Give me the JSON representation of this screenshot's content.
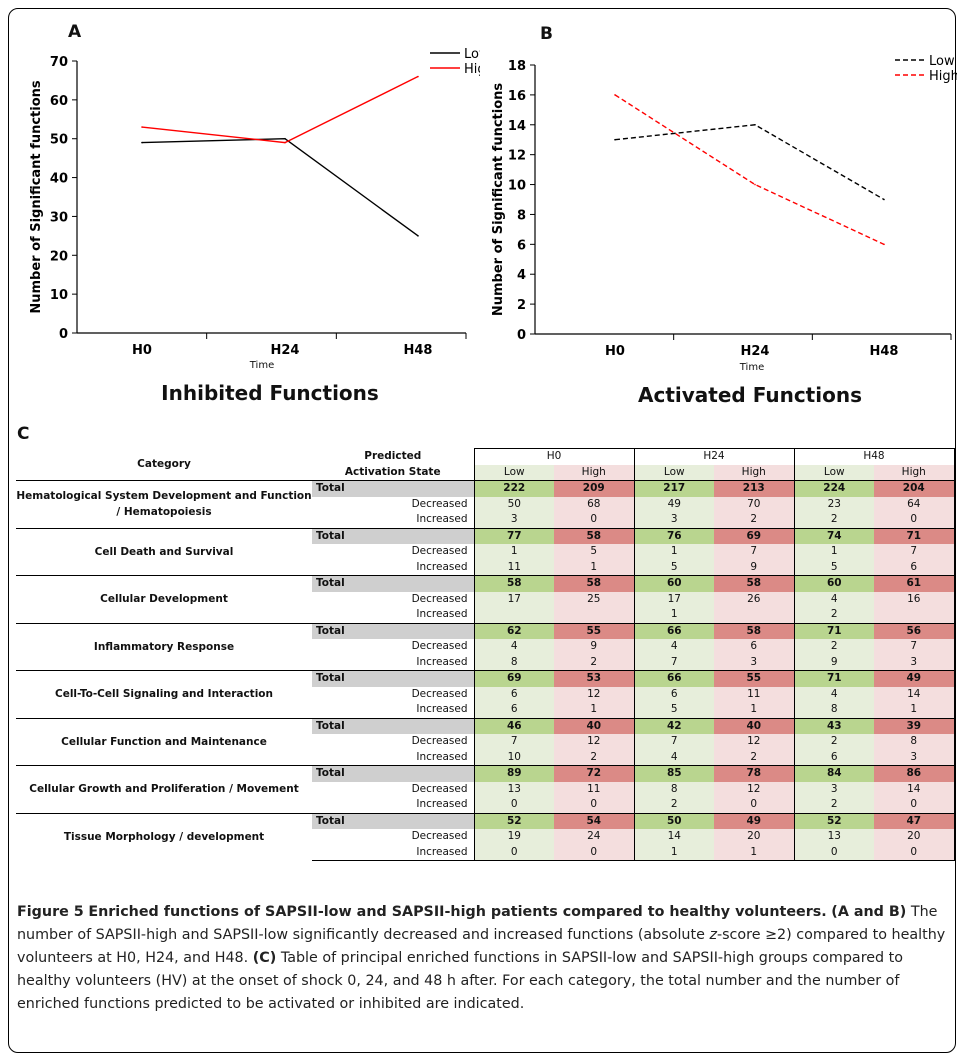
{
  "charts": {
    "A": {
      "letter": "A",
      "ylabel": "Number of Significant functions",
      "xlabel": "Time",
      "title": "Inhibited Functions",
      "yticks": [
        "0",
        "10",
        "20",
        "30",
        "40",
        "50",
        "60",
        "70"
      ],
      "xticks": [
        "H0",
        "H24",
        "H48"
      ],
      "legend": [
        {
          "name": "Low"
        },
        {
          "name": "High"
        }
      ]
    },
    "B": {
      "letter": "B",
      "ylabel": "Number of Significant functions",
      "xlabel": "Time",
      "title": "Activated Functions",
      "yticks": [
        "0",
        "2",
        "4",
        "6",
        "8",
        "10",
        "12",
        "14",
        "16",
        "18"
      ],
      "xticks": [
        "H0",
        "H24",
        "H48"
      ],
      "legend": [
        {
          "name": "Low"
        },
        {
          "name": "High"
        }
      ]
    }
  },
  "chart_data": [
    {
      "type": "line",
      "title": "Inhibited Functions",
      "xlabel": "Time",
      "ylabel": "Number of Significant functions",
      "categories": [
        "H0",
        "H24",
        "H48"
      ],
      "ylim": [
        0,
        70
      ],
      "series": [
        {
          "name": "Low",
          "values": [
            49,
            50,
            25
          ],
          "color": "#000000",
          "dash": "solid"
        },
        {
          "name": "High",
          "values": [
            53,
            49,
            66
          ],
          "color": "#ff0000",
          "dash": "solid"
        }
      ]
    },
    {
      "type": "line",
      "title": "Activated Functions",
      "xlabel": "Time",
      "ylabel": "Number of Significant functions",
      "categories": [
        "H0",
        "H24",
        "H48"
      ],
      "ylim": [
        0,
        18
      ],
      "series": [
        {
          "name": "Low",
          "values": [
            13,
            14,
            9
          ],
          "color": "#000000",
          "dash": "dashed"
        },
        {
          "name": "High",
          "values": [
            16,
            10,
            6
          ],
          "color": "#ff0000",
          "dash": "dashed"
        }
      ]
    }
  ],
  "panelC": {
    "letter": "C",
    "header": {
      "category": "Category",
      "predicted1": "Predicted",
      "predicted2": "Activation State",
      "times": [
        "H0",
        "H24",
        "H48"
      ],
      "low": "Low",
      "high": "High"
    },
    "total_label": "Total",
    "decreased_label": "Decreased",
    "increased_label": "Increased",
    "rows": [
      {
        "name": "Hematological System Development and Function / Hematopoiesis",
        "total": [
          "222",
          "209",
          "217",
          "213",
          "224",
          "204"
        ],
        "decreased": [
          "50",
          "68",
          "49",
          "70",
          "23",
          "64"
        ],
        "increased": [
          "3",
          "0",
          "3",
          "2",
          "2",
          "0"
        ]
      },
      {
        "name": "Cell Death and Survival",
        "total": [
          "77",
          "58",
          "76",
          "69",
          "74",
          "71"
        ],
        "decreased": [
          "1",
          "5",
          "1",
          "7",
          "1",
          "7"
        ],
        "increased": [
          "11",
          "1",
          "5",
          "9",
          "5",
          "6"
        ]
      },
      {
        "name": "Cellular Development",
        "total": [
          "58",
          "58",
          "60",
          "58",
          "60",
          "61"
        ],
        "decreased": [
          "17",
          "25",
          "17",
          "26",
          "4",
          "16"
        ],
        "increased": [
          "",
          "",
          "1",
          "",
          "2",
          ""
        ]
      },
      {
        "name": "Inflammatory Response",
        "total": [
          "62",
          "55",
          "66",
          "58",
          "71",
          "56"
        ],
        "decreased": [
          "4",
          "9",
          "4",
          "6",
          "2",
          "7"
        ],
        "increased": [
          "8",
          "2",
          "7",
          "3",
          "9",
          "3"
        ]
      },
      {
        "name": "Cell-To-Cell Signaling and Interaction",
        "total": [
          "69",
          "53",
          "66",
          "55",
          "71",
          "49"
        ],
        "decreased": [
          "6",
          "12",
          "6",
          "11",
          "4",
          "14"
        ],
        "increased": [
          "6",
          "1",
          "5",
          "1",
          "8",
          "1"
        ]
      },
      {
        "name": "Cellular Function and Maintenance",
        "total": [
          "46",
          "40",
          "42",
          "40",
          "43",
          "39"
        ],
        "decreased": [
          "7",
          "12",
          "7",
          "12",
          "2",
          "8"
        ],
        "increased": [
          "10",
          "2",
          "4",
          "2",
          "6",
          "3"
        ]
      },
      {
        "name": "Cellular Growth and Proliferation / Movement",
        "total": [
          "89",
          "72",
          "85",
          "78",
          "84",
          "86"
        ],
        "decreased": [
          "13",
          "11",
          "8",
          "12",
          "3",
          "14"
        ],
        "increased": [
          "0",
          "0",
          "2",
          "0",
          "2",
          "0"
        ]
      },
      {
        "name": "Tissue Morphology / development",
        "total": [
          "52",
          "54",
          "50",
          "49",
          "52",
          "47"
        ],
        "decreased": [
          "19",
          "24",
          "14",
          "20",
          "13",
          "20"
        ],
        "increased": [
          "0",
          "0",
          "1",
          "1",
          "0",
          "0"
        ]
      }
    ]
  },
  "caption": {
    "figure_label": "Figure 5",
    "title": "Enriched functions of SAPSII-low and SAPSII-high patients compared to healthy volunteers.",
    "ab_label": "(A and B)",
    "ab_text_1": "The number of SAPSII-high and SAPSII-low significantly decreased and increased functions (absolute",
    "z_letter": "z",
    "ab_text_2": "-score ≥2) compared to healthy volunteers at H0, H24, and H48.",
    "c_label": "(C)",
    "c_text": "Table of principal enriched functions in SAPSII-low and SAPSII-high groups compared to healthy volunteers (HV) at the onset of shock 0, 24, and 48 h after. For each category, the total number and the number of enriched functions predicted to be activated or inhibited are indicated."
  }
}
